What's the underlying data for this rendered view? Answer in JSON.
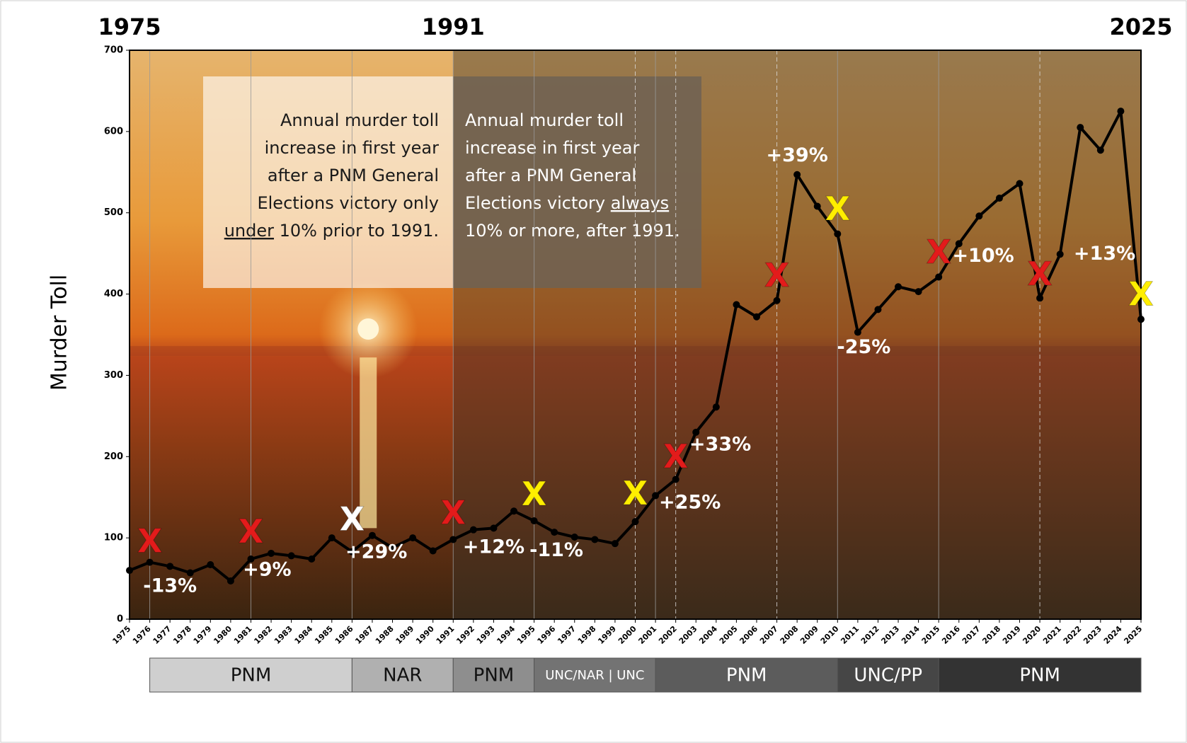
{
  "chart_data": {
    "type": "line",
    "y_label": "Murder Toll",
    "x": [
      1975,
      1976,
      1977,
      1978,
      1979,
      1980,
      1981,
      1982,
      1983,
      1984,
      1985,
      1986,
      1987,
      1988,
      1989,
      1990,
      1991,
      1992,
      1993,
      1994,
      1995,
      1996,
      1997,
      1998,
      1999,
      2000,
      2001,
      2002,
      2003,
      2004,
      2005,
      2006,
      2007,
      2008,
      2009,
      2010,
      2011,
      2012,
      2013,
      2014,
      2015,
      2016,
      2017,
      2018,
      2019,
      2020,
      2021,
      2022,
      2023,
      2024,
      2025
    ],
    "values": [
      60,
      70,
      65,
      57,
      67,
      47,
      74,
      81,
      78,
      74,
      100,
      83,
      103,
      88,
      100,
      84,
      98,
      110,
      112,
      133,
      121,
      107,
      101,
      98,
      93,
      120,
      152,
      172,
      230,
      261,
      387,
      372,
      392,
      547,
      508,
      474,
      353,
      381,
      409,
      403,
      421,
      462,
      496,
      518,
      536,
      395,
      449,
      605,
      577,
      625,
      369
    ],
    "color": "#000000",
    "xlim": [
      1975,
      2025
    ],
    "ylim": [
      0,
      700
    ],
    "yticks": [
      0,
      100,
      200,
      300,
      400,
      500,
      600,
      700
    ],
    "top_labels": [
      1975,
      1991,
      2025
    ],
    "election_lines": [
      {
        "x": 1976,
        "dashed": false
      },
      {
        "x": 1981,
        "dashed": false
      },
      {
        "x": 1986,
        "dashed": false
      },
      {
        "x": 1991,
        "dashed": false
      },
      {
        "x": 1995,
        "dashed": false
      },
      {
        "x": 2000,
        "dashed": true
      },
      {
        "x": 2001,
        "dashed": false
      },
      {
        "x": 2002,
        "dashed": true
      },
      {
        "x": 2007,
        "dashed": true
      },
      {
        "x": 2010,
        "dashed": false
      },
      {
        "x": 2015,
        "dashed": false
      },
      {
        "x": 2020,
        "dashed": true
      },
      {
        "x": 2025,
        "dashed": true
      }
    ],
    "markers": [
      {
        "label": "X",
        "x": 1976,
        "y": 93,
        "color": "#e31b1b"
      },
      {
        "label": "X",
        "x": 1981,
        "y": 105,
        "color": "#e31b1b"
      },
      {
        "label": "X",
        "x": 1986,
        "y": 120,
        "color": "#ffffff"
      },
      {
        "label": "X",
        "x": 1991,
        "y": 128,
        "color": "#e31b1b"
      },
      {
        "label": "X",
        "x": 1995,
        "y": 151,
        "color": "#ffee00"
      },
      {
        "label": "X",
        "x": 2000,
        "y": 152,
        "color": "#ffee00"
      },
      {
        "label": "X",
        "x": 2002,
        "y": 197,
        "color": "#e31b1b"
      },
      {
        "label": "X",
        "x": 2007,
        "y": 420,
        "color": "#e31b1b"
      },
      {
        "label": "X",
        "x": 2010,
        "y": 502,
        "color": "#ffee00"
      },
      {
        "label": "X",
        "x": 2015,
        "y": 449,
        "color": "#e31b1b"
      },
      {
        "label": "X",
        "x": 2020,
        "y": 422,
        "color": "#e31b1b"
      },
      {
        "label": "X",
        "x": 2025,
        "y": 397,
        "color": "#ffee00"
      }
    ],
    "annotations": [
      {
        "text": "-13%",
        "x": 1977,
        "y": 40
      },
      {
        "text": "+9%",
        "x": 1981.8,
        "y": 60
      },
      {
        "text": "+29%",
        "x": 1987.2,
        "y": 82
      },
      {
        "text": "+12%",
        "x": 1993,
        "y": 88
      },
      {
        "text": "-11%",
        "x": 1996.1,
        "y": 84
      },
      {
        "text": "+25%",
        "x": 2002.7,
        "y": 143
      },
      {
        "text": "+33%",
        "x": 2004.2,
        "y": 214
      },
      {
        "text": "+39%",
        "x": 2008,
        "y": 570
      },
      {
        "text": "-25%",
        "x": 2011.3,
        "y": 334
      },
      {
        "text": "+10%",
        "x": 2017.2,
        "y": 446
      },
      {
        "text": "+13%",
        "x": 2023.2,
        "y": 449
      }
    ],
    "parties": [
      {
        "label": "PNM",
        "from": 1976,
        "to": 1986,
        "color": "#cfcfcf",
        "text_color": "#111111"
      },
      {
        "label": "NAR",
        "from": 1986,
        "to": 1991,
        "color": "#b0b0b0",
        "text_color": "#111111"
      },
      {
        "label": "PNM",
        "from": 1991,
        "to": 1995,
        "color": "#8e8e8e",
        "text_color": "#111111"
      },
      {
        "label": "UNC/NAR | UNC",
        "from": 1995,
        "to": 2001,
        "color": "#737373",
        "text_color": "#ffffff"
      },
      {
        "label": "PNM",
        "from": 2001,
        "to": 2010,
        "color": "#5c5c5c",
        "text_color": "#ffffff"
      },
      {
        "label": "UNC/PP",
        "from": 2010,
        "to": 2015,
        "color": "#464646",
        "text_color": "#ffffff"
      },
      {
        "label": "PNM",
        "from": 2015,
        "to": 2025,
        "color": "#333333",
        "text_color": "#ffffff"
      }
    ],
    "box_left": {
      "lines": [
        "Annual murder toll",
        "increase in first year",
        "after a PNM General",
        "Elections victory only",
        [
          {
            "text": "under",
            "underline": true
          },
          " 10% prior to 1991."
        ]
      ]
    },
    "box_right": {
      "lines": [
        "Annual murder toll",
        "increase in first year",
        "after a PNM General",
        [
          {
            "text": "Elections victory "
          },
          {
            "text": "always",
            "underline": true
          }
        ],
        "10% or more, after 1991."
      ]
    }
  }
}
